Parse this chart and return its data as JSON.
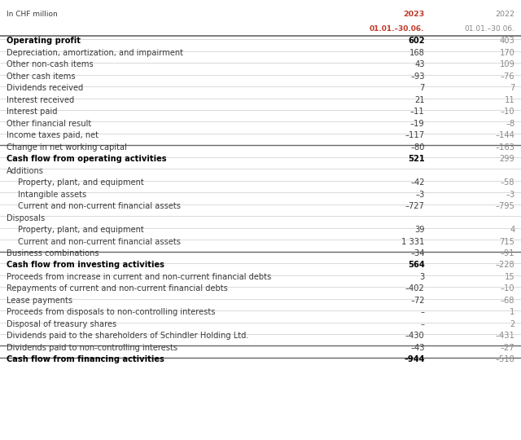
{
  "header_label": "In CHF million",
  "col1_header_line1": "2023",
  "col1_header_line2": "01.01.–30.06.",
  "col2_header_line1": "2022",
  "col2_header_line2": "01.01.–30.06.",
  "rows": [
    {
      "label": "Operating profit",
      "v1": "602",
      "v2": "403",
      "bold": true,
      "indent": 0,
      "thick_above": true,
      "header_row": false
    },
    {
      "label": "Depreciation, amortization, and impairment",
      "v1": "168",
      "v2": "170",
      "bold": false,
      "indent": 0,
      "thick_above": false,
      "header_row": false
    },
    {
      "label": "Other non-cash items",
      "v1": "43",
      "v2": "109",
      "bold": false,
      "indent": 0,
      "thick_above": false,
      "header_row": false
    },
    {
      "label": "Other cash items",
      "v1": "–93",
      "v2": "–76",
      "bold": false,
      "indent": 0,
      "thick_above": false,
      "header_row": false
    },
    {
      "label": "Dividends received",
      "v1": "7",
      "v2": "7",
      "bold": false,
      "indent": 0,
      "thick_above": false,
      "header_row": false
    },
    {
      "label": "Interest received",
      "v1": "21",
      "v2": "11",
      "bold": false,
      "indent": 0,
      "thick_above": false,
      "header_row": false
    },
    {
      "label": "Interest paid",
      "v1": "–11",
      "v2": "–10",
      "bold": false,
      "indent": 0,
      "thick_above": false,
      "header_row": false
    },
    {
      "label": "Other financial result",
      "v1": "–19",
      "v2": "–8",
      "bold": false,
      "indent": 0,
      "thick_above": false,
      "header_row": false
    },
    {
      "label": "Income taxes paid, net",
      "v1": "–117",
      "v2": "–144",
      "bold": false,
      "indent": 0,
      "thick_above": false,
      "header_row": false
    },
    {
      "label": "Change in net working capital",
      "v1": "–80",
      "v2": "–163",
      "bold": false,
      "indent": 0,
      "thick_above": false,
      "header_row": false
    },
    {
      "label": "Cash flow from operating activities",
      "v1": "521",
      "v2": "299",
      "bold": true,
      "indent": 0,
      "thick_above": true,
      "header_row": false
    },
    {
      "label": "Additions",
      "v1": "",
      "v2": "",
      "bold": false,
      "indent": 0,
      "thick_above": false,
      "header_row": true
    },
    {
      "label": "Property, plant, and equipment",
      "v1": "–42",
      "v2": "–58",
      "bold": false,
      "indent": 1,
      "thick_above": false,
      "header_row": false
    },
    {
      "label": "Intangible assets",
      "v1": "–3",
      "v2": "–3",
      "bold": false,
      "indent": 1,
      "thick_above": false,
      "header_row": false
    },
    {
      "label": "Current and non-current financial assets",
      "v1": "–727",
      "v2": "–795",
      "bold": false,
      "indent": 1,
      "thick_above": false,
      "header_row": false
    },
    {
      "label": "Disposals",
      "v1": "",
      "v2": "",
      "bold": false,
      "indent": 0,
      "thick_above": false,
      "header_row": true
    },
    {
      "label": "Property, plant, and equipment",
      "v1": "39",
      "v2": "4",
      "bold": false,
      "indent": 1,
      "thick_above": false,
      "header_row": false
    },
    {
      "label": "Current and non-current financial assets",
      "v1": "1 331",
      "v2": "715",
      "bold": false,
      "indent": 1,
      "thick_above": false,
      "header_row": false
    },
    {
      "label": "Business combinations",
      "v1": "–34",
      "v2": "–91",
      "bold": false,
      "indent": 0,
      "thick_above": false,
      "header_row": false
    },
    {
      "label": "Cash flow from investing activities",
      "v1": "564",
      "v2": "–228",
      "bold": true,
      "indent": 0,
      "thick_above": true,
      "header_row": false
    },
    {
      "label": "Proceeds from increase in current and non-current financial debts",
      "v1": "3",
      "v2": "15",
      "bold": false,
      "indent": 0,
      "thick_above": false,
      "header_row": false
    },
    {
      "label": "Repayments of current and non-current financial debts",
      "v1": "–402",
      "v2": "–10",
      "bold": false,
      "indent": 0,
      "thick_above": false,
      "header_row": false
    },
    {
      "label": "Lease payments",
      "v1": "–72",
      "v2": "–68",
      "bold": false,
      "indent": 0,
      "thick_above": false,
      "header_row": false
    },
    {
      "label": "Proceeds from disposals to non-controlling interests",
      "v1": "–",
      "v2": "1",
      "bold": false,
      "indent": 0,
      "thick_above": false,
      "header_row": false
    },
    {
      "label": "Disposal of treasury shares",
      "v1": "–",
      "v2": "2",
      "bold": false,
      "indent": 0,
      "thick_above": false,
      "header_row": false
    },
    {
      "label": "Dividends paid to the shareholders of Schindler Holding Ltd.",
      "v1": "–430",
      "v2": "–431",
      "bold": false,
      "indent": 0,
      "thick_above": false,
      "header_row": false
    },
    {
      "label": "Dividends paid to non-controlling interests",
      "v1": "–43",
      "v2": "–27",
      "bold": false,
      "indent": 0,
      "thick_above": false,
      "header_row": false
    },
    {
      "label": "Cash flow from financing activities",
      "v1": "–944",
      "v2": "–518",
      "bold": true,
      "indent": 0,
      "thick_above": true,
      "header_row": false
    }
  ],
  "bg_color": "#ffffff",
  "header_color": "#c0392b",
  "bold_color": "#000000",
  "normal_color": "#3a3a3a",
  "line_color": "#cccccc",
  "thick_line_color": "#666666",
  "col2_color": "#888888"
}
